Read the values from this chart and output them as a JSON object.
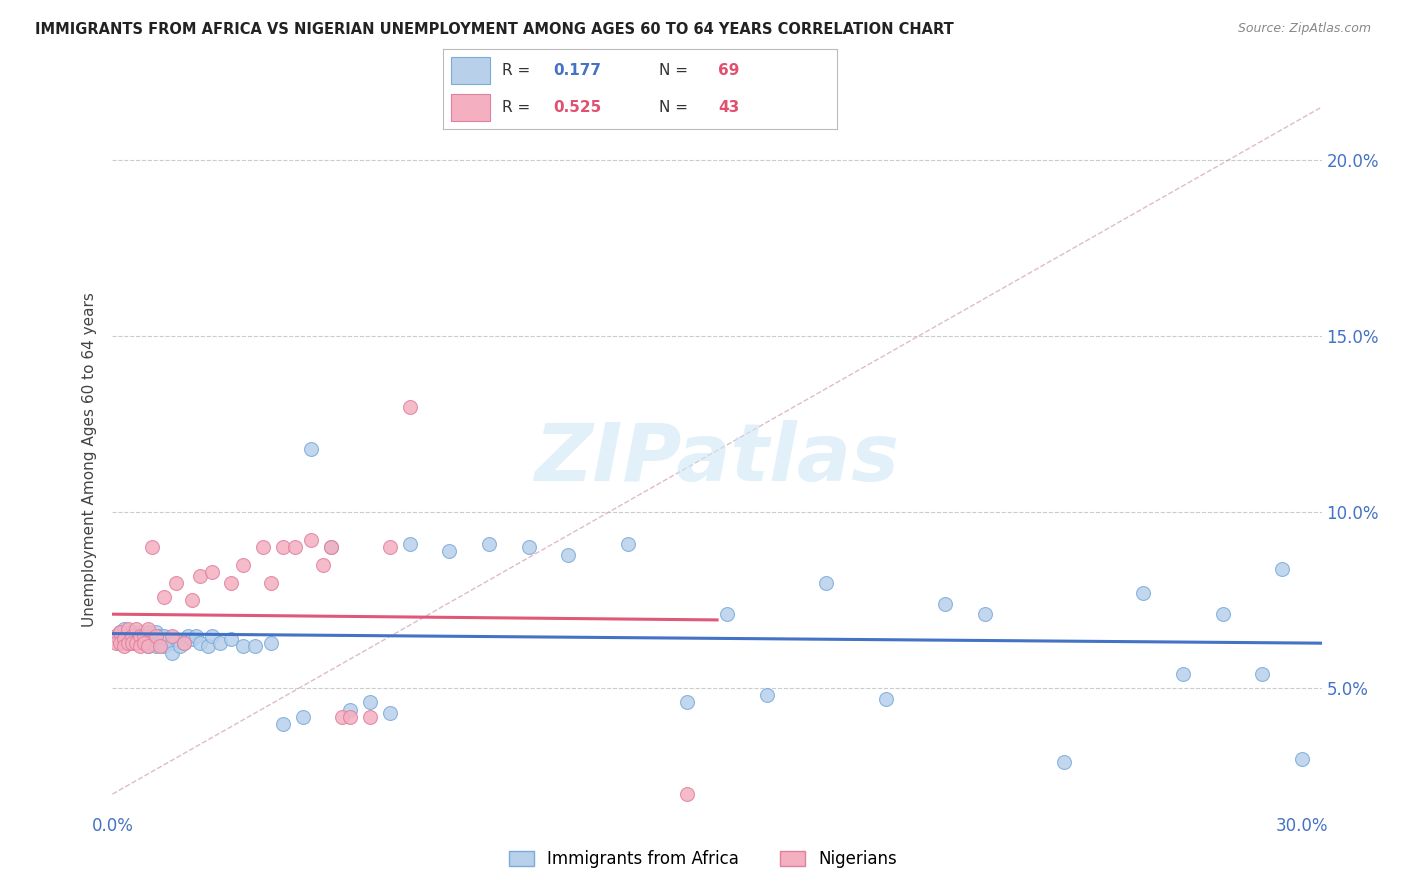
{
  "title": "IMMIGRANTS FROM AFRICA VS NIGERIAN UNEMPLOYMENT AMONG AGES 60 TO 64 YEARS CORRELATION CHART",
  "source": "Source: ZipAtlas.com",
  "ylabel": "Unemployment Among Ages 60 to 64 years",
  "xlim": [
    0.0,
    0.305
  ],
  "ylim": [
    0.015,
    0.215
  ],
  "yticks": [
    0.05,
    0.1,
    0.15,
    0.2
  ],
  "ytick_labels": [
    "5.0%",
    "10.0%",
    "15.0%",
    "20.0%"
  ],
  "xticks": [
    0.0,
    0.05,
    0.1,
    0.15,
    0.2,
    0.25,
    0.3
  ],
  "xtick_labels": [
    "0.0%",
    "",
    "",
    "",
    "",
    "",
    "30.0%"
  ],
  "blue_label": "Immigrants from Africa",
  "pink_label": "Nigerians",
  "blue_R": "0.177",
  "blue_N": "69",
  "pink_R": "0.525",
  "pink_N": "43",
  "blue_color": "#b8d0ea",
  "pink_color": "#f4b0c0",
  "blue_edge_color": "#7aabda",
  "pink_edge_color": "#e080a0",
  "blue_line_color": "#4472c4",
  "pink_line_color": "#e05878",
  "ref_line_color": "#d0a0b0",
  "background_color": "#ffffff",
  "watermark": "ZIPatlas",
  "blue_scatter_x": [
    0.001,
    0.002,
    0.002,
    0.003,
    0.003,
    0.004,
    0.004,
    0.005,
    0.005,
    0.006,
    0.006,
    0.007,
    0.007,
    0.008,
    0.008,
    0.009,
    0.009,
    0.01,
    0.01,
    0.011,
    0.011,
    0.012,
    0.012,
    0.013,
    0.013,
    0.014,
    0.015,
    0.015,
    0.016,
    0.017,
    0.018,
    0.019,
    0.02,
    0.021,
    0.022,
    0.024,
    0.025,
    0.027,
    0.03,
    0.033,
    0.036,
    0.04,
    0.043,
    0.048,
    0.05,
    0.055,
    0.06,
    0.065,
    0.07,
    0.075,
    0.085,
    0.095,
    0.105,
    0.115,
    0.13,
    0.145,
    0.155,
    0.165,
    0.18,
    0.195,
    0.21,
    0.22,
    0.24,
    0.26,
    0.27,
    0.28,
    0.29,
    0.295,
    0.3
  ],
  "blue_scatter_y": [
    0.065,
    0.063,
    0.066,
    0.064,
    0.067,
    0.065,
    0.063,
    0.066,
    0.064,
    0.065,
    0.063,
    0.066,
    0.064,
    0.065,
    0.063,
    0.066,
    0.062,
    0.065,
    0.063,
    0.066,
    0.062,
    0.065,
    0.063,
    0.065,
    0.062,
    0.064,
    0.063,
    0.06,
    0.064,
    0.062,
    0.063,
    0.065,
    0.064,
    0.065,
    0.063,
    0.062,
    0.065,
    0.063,
    0.064,
    0.062,
    0.062,
    0.063,
    0.04,
    0.042,
    0.118,
    0.09,
    0.044,
    0.046,
    0.043,
    0.091,
    0.089,
    0.091,
    0.09,
    0.088,
    0.091,
    0.046,
    0.071,
    0.048,
    0.08,
    0.047,
    0.074,
    0.071,
    0.029,
    0.077,
    0.054,
    0.071,
    0.054,
    0.084,
    0.03
  ],
  "pink_scatter_x": [
    0.001,
    0.001,
    0.002,
    0.002,
    0.003,
    0.003,
    0.004,
    0.004,
    0.005,
    0.005,
    0.006,
    0.006,
    0.007,
    0.007,
    0.008,
    0.008,
    0.009,
    0.009,
    0.01,
    0.011,
    0.012,
    0.013,
    0.015,
    0.016,
    0.018,
    0.02,
    0.022,
    0.025,
    0.03,
    0.033,
    0.038,
    0.04,
    0.043,
    0.046,
    0.05,
    0.053,
    0.055,
    0.058,
    0.06,
    0.065,
    0.07,
    0.075,
    0.145
  ],
  "pink_scatter_y": [
    0.065,
    0.063,
    0.066,
    0.063,
    0.064,
    0.062,
    0.067,
    0.063,
    0.065,
    0.063,
    0.067,
    0.063,
    0.065,
    0.062,
    0.065,
    0.063,
    0.062,
    0.067,
    0.09,
    0.065,
    0.062,
    0.076,
    0.065,
    0.08,
    0.063,
    0.075,
    0.082,
    0.083,
    0.08,
    0.085,
    0.09,
    0.08,
    0.09,
    0.09,
    0.092,
    0.085,
    0.09,
    0.042,
    0.042,
    0.042,
    0.09,
    0.13,
    0.02
  ]
}
